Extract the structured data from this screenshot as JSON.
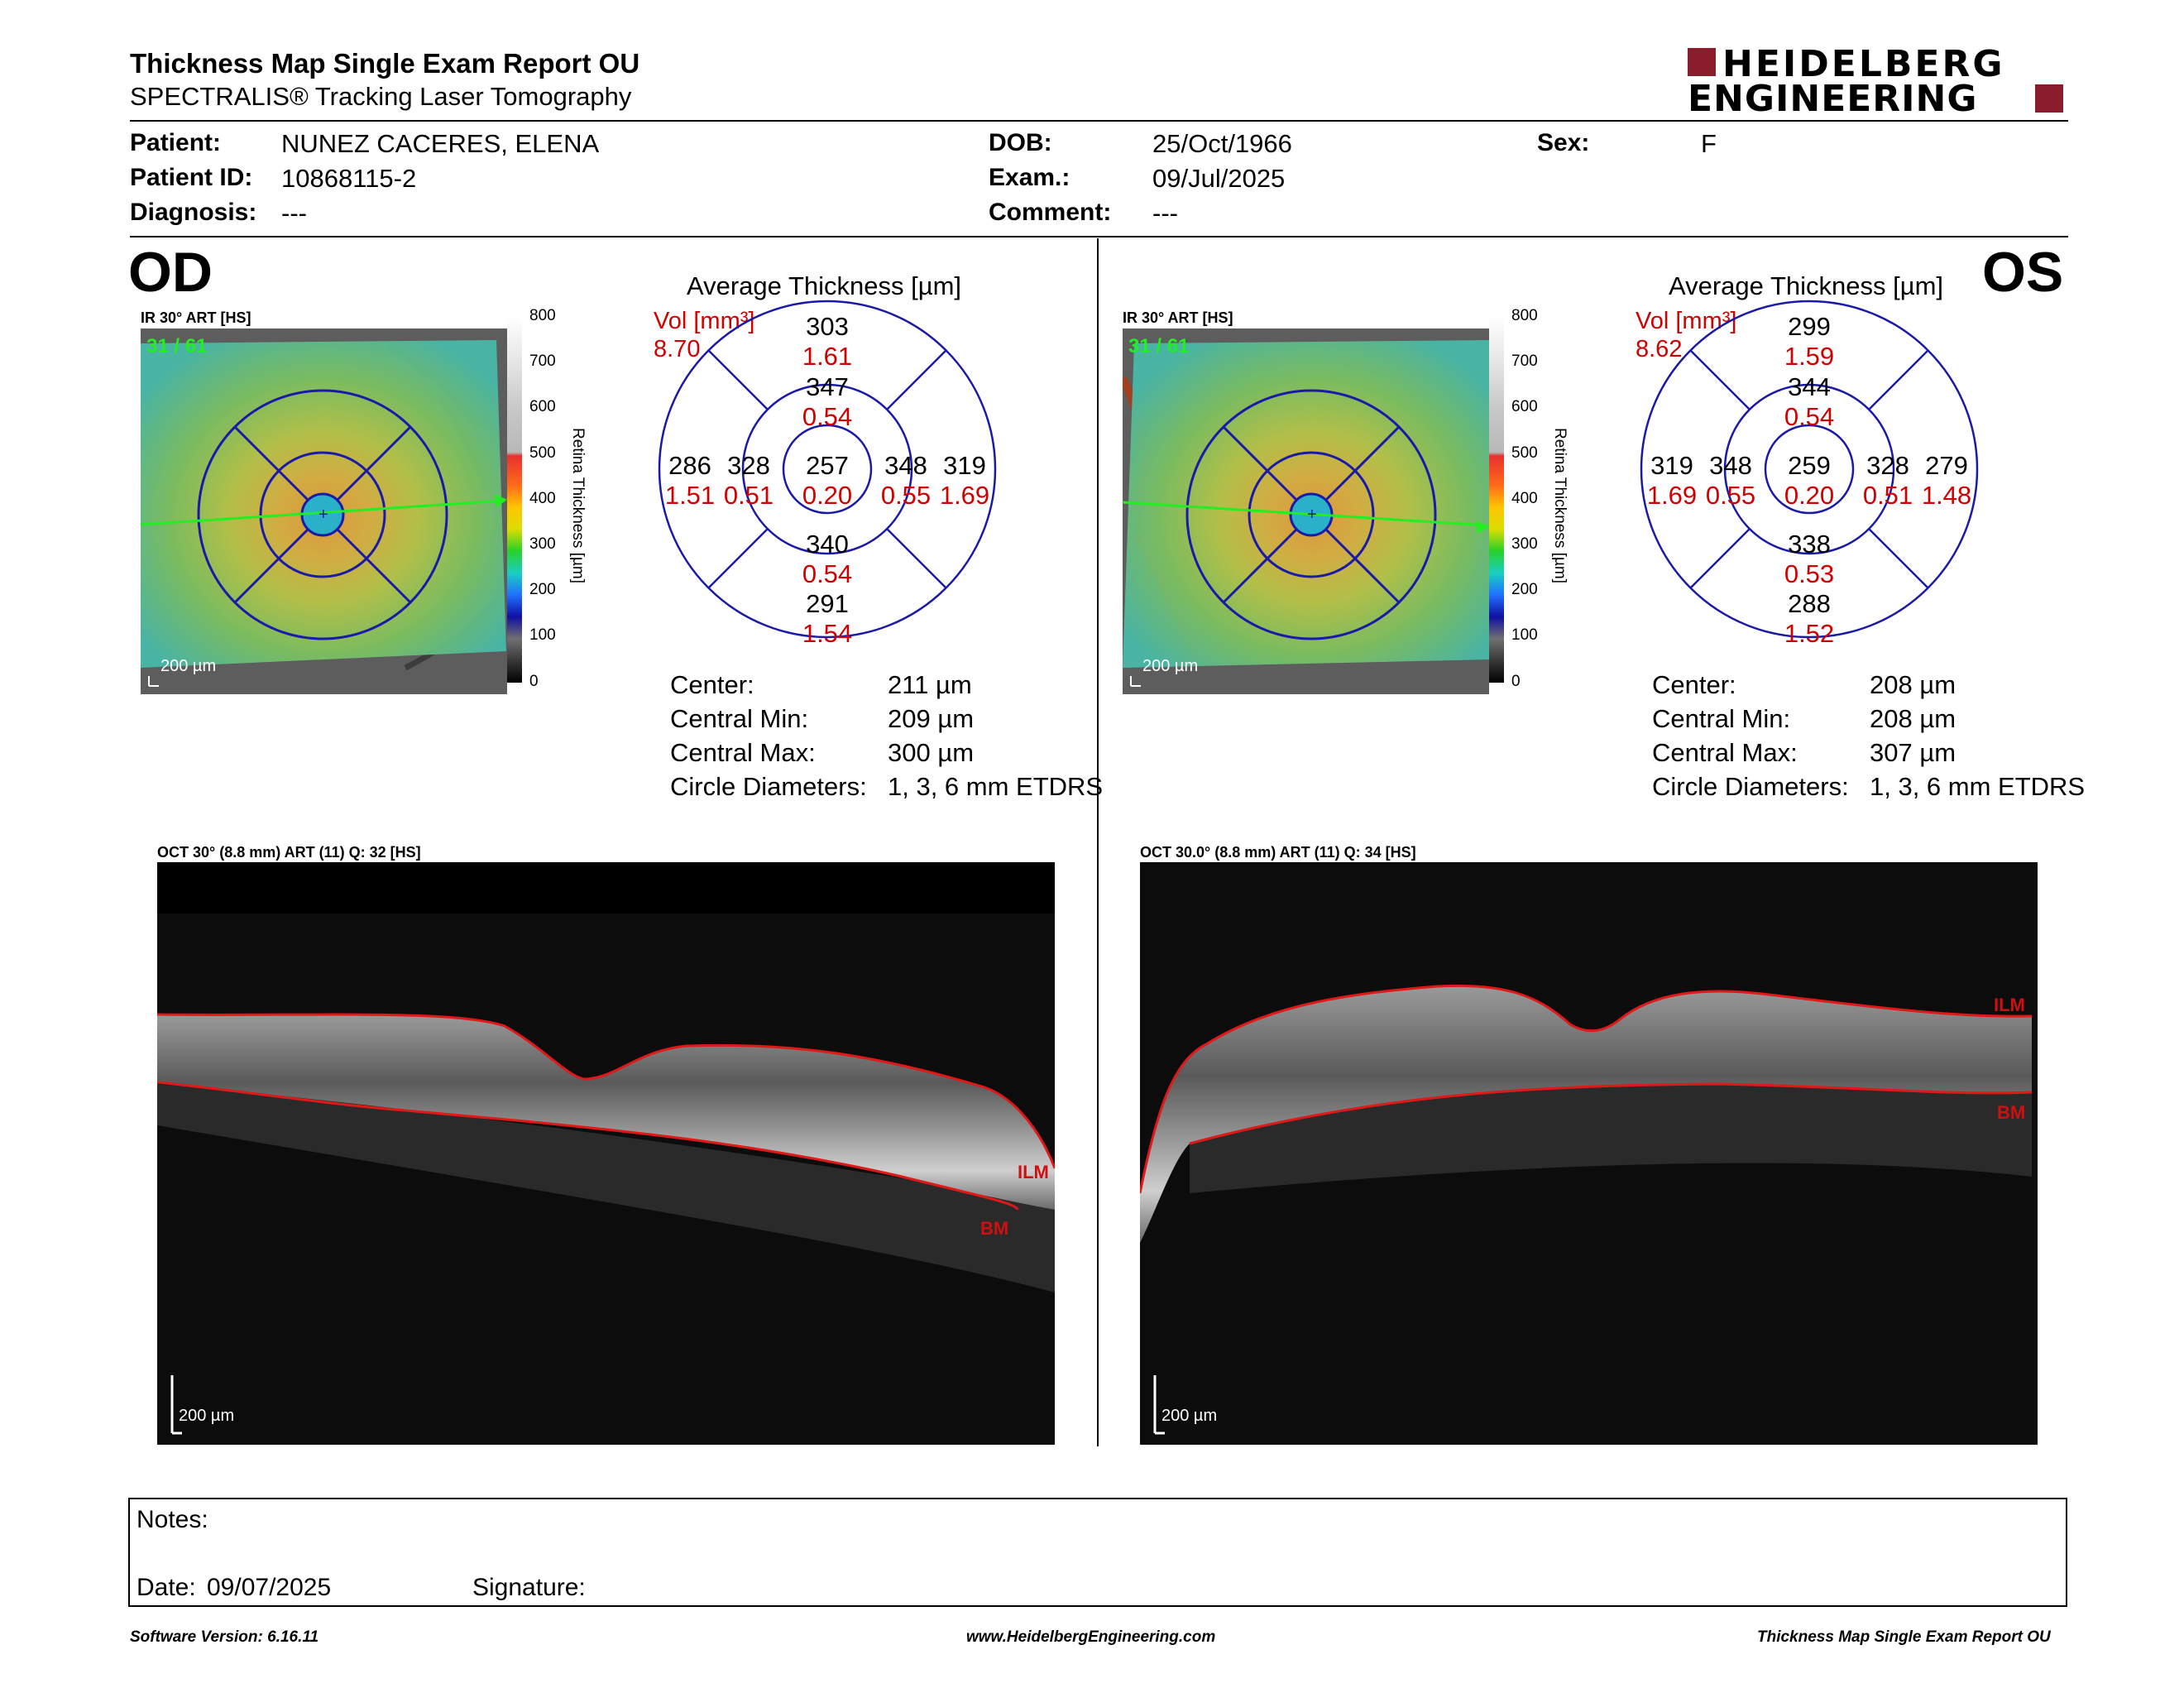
{
  "header": {
    "title": "Thickness Map Single Exam Report OU",
    "subtitle": "SPECTRALIS® Tracking Laser Tomography",
    "logo_line1": "HEIDELBERG",
    "logo_line2": "ENGINEERING"
  },
  "patient": {
    "patient_label": "Patient:",
    "patient_value": "NUNEZ CACERES, ELENA",
    "id_label": "Patient ID:",
    "id_value": "10868115-2",
    "diagnosis_label": "Diagnosis:",
    "diagnosis_value": "---",
    "dob_label": "DOB:",
    "dob_value": "25/Oct/1966",
    "exam_label": "Exam.:",
    "exam_value": "09/Jul/2025",
    "comment_label": "Comment:",
    "comment_value": "---",
    "sex_label": "Sex:",
    "sex_value": "F"
  },
  "colorbar_ticks": [
    "800",
    "700",
    "600",
    "500",
    "400",
    "300",
    "200",
    "100",
    "0"
  ],
  "colorbar_label": "Retina  Thickness [µm]",
  "od": {
    "eye": "OD",
    "ir_label": "IR 30° ART [HS]",
    "frame_counter": "31 / 61",
    "scale_bar": "200 µm",
    "avg_title": "Average Thickness [µm]",
    "vol_label": "Vol [mm³]",
    "vol_value": "8.70",
    "sectors": {
      "center": {
        "t": "257",
        "v": "0.20"
      },
      "inner_sup": {
        "t": "347",
        "v": "0.54"
      },
      "inner_inf": {
        "t": "340",
        "v": "0.54"
      },
      "inner_left": {
        "t": "328",
        "v": "0.51"
      },
      "inner_right": {
        "t": "348",
        "v": "0.55"
      },
      "outer_sup": {
        "t": "303",
        "v": "1.61"
      },
      "outer_inf": {
        "t": "291",
        "v": "1.54"
      },
      "outer_left": {
        "t": "286",
        "v": "1.51"
      },
      "outer_right": {
        "t": "319",
        "v": "1.69"
      }
    },
    "stats": {
      "center_label": "Center:",
      "center_value": "211 µm",
      "min_label": "Central Min:",
      "min_value": "209 µm",
      "max_label": "Central Max:",
      "max_value": "300 µm",
      "diam_label": "Circle Diameters:",
      "diam_value": "1, 3, 6 mm ETDRS"
    },
    "oct_label": "OCT 30° (8.8 mm) ART (11) Q: 32 [HS]",
    "oct_scale": "200 µm",
    "ilm": "ILM",
    "bm": "BM"
  },
  "os": {
    "eye": "OS",
    "ir_label": "IR 30° ART [HS]",
    "frame_counter": "31 / 61",
    "scale_bar": "200 µm",
    "avg_title": "Average Thickness [µm]",
    "vol_label": "Vol [mm³]",
    "vol_value": "8.62",
    "sectors": {
      "center": {
        "t": "259",
        "v": "0.20"
      },
      "inner_sup": {
        "t": "344",
        "v": "0.54"
      },
      "inner_inf": {
        "t": "338",
        "v": "0.53"
      },
      "inner_left": {
        "t": "348",
        "v": "0.55"
      },
      "inner_right": {
        "t": "328",
        "v": "0.51"
      },
      "outer_sup": {
        "t": "299",
        "v": "1.59"
      },
      "outer_inf": {
        "t": "288",
        "v": "1.52"
      },
      "outer_left": {
        "t": "319",
        "v": "1.69"
      },
      "outer_right": {
        "t": "279",
        "v": "1.48"
      }
    },
    "stats": {
      "center_label": "Center:",
      "center_value": "208 µm",
      "min_label": "Central Min:",
      "min_value": "208 µm",
      "max_label": "Central Max:",
      "max_value": "307 µm",
      "diam_label": "Circle Diameters:",
      "diam_value": "1, 3, 6 mm ETDRS"
    },
    "oct_label": "OCT 30.0° (8.8 mm) ART (11) Q: 34 [HS]",
    "oct_scale": "200 µm",
    "ilm": "ILM",
    "bm": "BM"
  },
  "notes": {
    "notes_label": "Notes:",
    "date_label": "Date:",
    "date_value": "09/07/2025",
    "signature_label": "Signature:"
  },
  "footer": {
    "software": "Software Version: 6.16.11",
    "website": "www.HeidelbergEngineering.com",
    "report": "Thickness Map Single Exam Report OU"
  }
}
